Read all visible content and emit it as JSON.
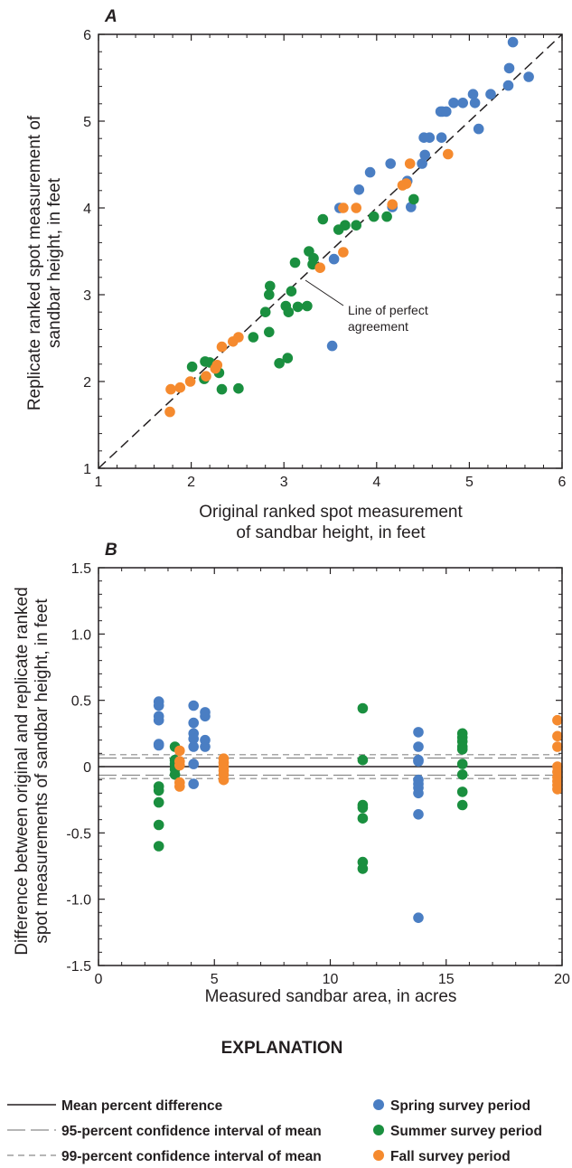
{
  "colors": {
    "spring": "#4a7ec3",
    "summer": "#1a8f3f",
    "fall": "#f58a2e",
    "axis": "#231f20",
    "ci": "#8a8a8a"
  },
  "chart_data": [
    {
      "panel": "A",
      "type": "scatter",
      "xlabel_line1": "Original ranked spot measurement",
      "xlabel_line2": "of sandbar height, in feet",
      "ylabel_line1": "Replicate ranked spot measurement of",
      "ylabel_line2": "sandbar height, in feet",
      "xlim": [
        1,
        6
      ],
      "ylim": [
        1,
        6
      ],
      "xticks": [
        "1",
        "2",
        "3",
        "4",
        "5",
        "6"
      ],
      "yticks": [
        "1",
        "2",
        "3",
        "4",
        "5",
        "6"
      ],
      "annotation_line1": "Line of perfect",
      "annotation_line2": "agreement",
      "reference_line": {
        "type": "1:1",
        "style": "dashed",
        "from": [
          1,
          1
        ],
        "to": [
          6,
          6
        ]
      },
      "series": [
        {
          "name": "Spring survey period",
          "color_key": "spring",
          "points": [
            [
              5.47,
              5.91
            ],
            [
              5.43,
              5.61
            ],
            [
              5.64,
              5.51
            ],
            [
              5.42,
              5.41
            ],
            [
              5.04,
              5.31
            ],
            [
              5.23,
              5.31
            ],
            [
              4.93,
              5.21
            ],
            [
              5.06,
              5.21
            ],
            [
              4.83,
              5.21
            ],
            [
              4.69,
              5.11
            ],
            [
              4.71,
              5.11
            ],
            [
              4.75,
              5.11
            ],
            [
              5.1,
              4.91
            ],
            [
              4.51,
              4.81
            ],
            [
              4.57,
              4.81
            ],
            [
              4.7,
              4.81
            ],
            [
              4.52,
              4.61
            ],
            [
              4.49,
              4.51
            ],
            [
              4.15,
              4.51
            ],
            [
              3.93,
              4.41
            ],
            [
              4.33,
              4.31
            ],
            [
              3.81,
              4.21
            ],
            [
              4.17,
              4.01
            ],
            [
              4.37,
              4.01
            ],
            [
              3.6,
              4.0
            ],
            [
              3.54,
              3.41
            ],
            [
              3.52,
              2.41
            ]
          ]
        },
        {
          "name": "Summer survey period",
          "color_key": "summer",
          "points": [
            [
              4.4,
              4.1
            ],
            [
              3.97,
              3.9
            ],
            [
              4.11,
              3.9
            ],
            [
              3.42,
              3.87
            ],
            [
              3.66,
              3.8
            ],
            [
              3.78,
              3.8
            ],
            [
              3.59,
              3.75
            ],
            [
              3.27,
              3.5
            ],
            [
              3.32,
              3.42
            ],
            [
              3.31,
              3.35
            ],
            [
              3.12,
              3.37
            ],
            [
              2.85,
              3.1
            ],
            [
              2.84,
              3.0
            ],
            [
              3.08,
              3.04
            ],
            [
              2.8,
              2.8
            ],
            [
              3.05,
              2.8
            ],
            [
              3.02,
              2.87
            ],
            [
              3.15,
              2.86
            ],
            [
              3.25,
              2.87
            ],
            [
              2.84,
              2.57
            ],
            [
              2.67,
              2.51
            ],
            [
              2.95,
              2.21
            ],
            [
              3.04,
              2.27
            ],
            [
              2.2,
              2.22
            ],
            [
              2.15,
              2.23
            ],
            [
              2.01,
              2.17
            ],
            [
              2.3,
              2.1
            ],
            [
              2.14,
              2.03
            ],
            [
              2.33,
              1.91
            ],
            [
              2.51,
              1.92
            ]
          ]
        },
        {
          "name": "Fall survey period",
          "color_key": "fall",
          "points": [
            [
              4.36,
              4.51
            ],
            [
              4.77,
              4.62
            ],
            [
              4.32,
              4.28
            ],
            [
              4.28,
              4.26
            ],
            [
              4.17,
              4.04
            ],
            [
              3.64,
              4.0
            ],
            [
              3.78,
              4.0
            ],
            [
              3.64,
              3.49
            ],
            [
              3.39,
              3.31
            ],
            [
              2.51,
              2.51
            ],
            [
              2.45,
              2.46
            ],
            [
              2.33,
              2.4
            ],
            [
              2.28,
              2.19
            ],
            [
              2.26,
              2.15
            ],
            [
              2.16,
              2.06
            ],
            [
              1.99,
              2.0
            ],
            [
              1.88,
              1.93
            ],
            [
              1.78,
              1.91
            ],
            [
              1.77,
              1.65
            ]
          ]
        }
      ]
    },
    {
      "panel": "B",
      "type": "scatter",
      "xlabel": "Measured sandbar area, in acres",
      "ylabel_line1": "Difference between original and replicate ranked",
      "ylabel_line2": "spot measurements of sandbar height, in feet",
      "xlim": [
        0,
        20
      ],
      "ylim": [
        -1.5,
        1.5
      ],
      "xticks": [
        "0",
        "5",
        "10",
        "15",
        "20"
      ],
      "yticks": [
        "1.5",
        "1.0",
        "0.5",
        "0",
        "-0.5",
        "-1.0",
        "-1.5"
      ],
      "mean": 0.0,
      "ci95": [
        -0.065,
        0.065
      ],
      "ci99": [
        -0.09,
        0.09
      ],
      "series": [
        {
          "name": "Spring survey period",
          "color_key": "spring",
          "points": [
            [
              2.6,
              0.49
            ],
            [
              2.6,
              0.46
            ],
            [
              2.6,
              0.38
            ],
            [
              2.6,
              0.35
            ],
            [
              2.6,
              0.17
            ],
            [
              2.6,
              0.16
            ],
            [
              4.1,
              0.46
            ],
            [
              4.1,
              0.33
            ],
            [
              4.1,
              0.25
            ],
            [
              4.1,
              0.21
            ],
            [
              4.1,
              0.15
            ],
            [
              4.1,
              0.02
            ],
            [
              4.1,
              -0.13
            ],
            [
              4.6,
              0.41
            ],
            [
              4.6,
              0.38
            ],
            [
              4.6,
              0.2
            ],
            [
              4.6,
              0.15
            ],
            [
              13.8,
              0.26
            ],
            [
              13.8,
              0.15
            ],
            [
              13.8,
              0.05
            ],
            [
              13.8,
              0.04
            ],
            [
              13.8,
              -0.1
            ],
            [
              13.8,
              -0.13
            ],
            [
              13.8,
              -0.16
            ],
            [
              13.8,
              -0.2
            ],
            [
              13.8,
              -0.36
            ],
            [
              13.8,
              -1.14
            ]
          ]
        },
        {
          "name": "Summer survey period",
          "color_key": "summer",
          "points": [
            [
              2.6,
              -0.15
            ],
            [
              2.6,
              -0.18
            ],
            [
              2.6,
              -0.27
            ],
            [
              2.6,
              -0.44
            ],
            [
              2.6,
              -0.6
            ],
            [
              3.3,
              0.15
            ],
            [
              3.3,
              0.05
            ],
            [
              3.3,
              0.02
            ],
            [
              3.3,
              -0.02
            ],
            [
              3.3,
              -0.06
            ],
            [
              11.4,
              0.44
            ],
            [
              11.4,
              0.05
            ],
            [
              11.4,
              -0.29
            ],
            [
              11.4,
              -0.31
            ],
            [
              11.4,
              -0.39
            ],
            [
              11.4,
              -0.72
            ],
            [
              11.4,
              -0.77
            ],
            [
              15.7,
              0.25
            ],
            [
              15.7,
              0.22
            ],
            [
              15.7,
              0.19
            ],
            [
              15.7,
              0.15
            ],
            [
              15.7,
              0.13
            ],
            [
              15.7,
              0.02
            ],
            [
              15.7,
              -0.06
            ],
            [
              15.7,
              -0.19
            ],
            [
              15.7,
              -0.29
            ]
          ]
        },
        {
          "name": "Fall survey period",
          "color_key": "fall",
          "points": [
            [
              3.5,
              0.12
            ],
            [
              3.5,
              0.04
            ],
            [
              3.5,
              0.01
            ],
            [
              3.5,
              -0.12
            ],
            [
              3.5,
              -0.15
            ],
            [
              5.4,
              0.06
            ],
            [
              5.4,
              0.03
            ],
            [
              5.4,
              0.0
            ],
            [
              5.4,
              -0.03
            ],
            [
              5.4,
              -0.06
            ],
            [
              5.4,
              -0.1
            ],
            [
              19.8,
              0.35
            ],
            [
              19.8,
              0.23
            ],
            [
              19.8,
              0.15
            ],
            [
              19.8,
              0.0
            ],
            [
              19.8,
              -0.04
            ],
            [
              19.8,
              -0.08
            ],
            [
              19.8,
              -0.11
            ],
            [
              19.8,
              -0.14
            ],
            [
              19.8,
              -0.17
            ]
          ]
        }
      ]
    }
  ],
  "explanation": {
    "title": "EXPLANATION",
    "lines": [
      {
        "label": "Mean percent difference",
        "style": "solid"
      },
      {
        "label": "95-percent confidence interval of mean",
        "style": "long-dash"
      },
      {
        "label": "99-percent confidence interval of mean",
        "style": "short-dash"
      }
    ],
    "markers": [
      {
        "label": "Spring survey period",
        "color_key": "spring"
      },
      {
        "label": "Summer survey period",
        "color_key": "summer"
      },
      {
        "label": "Fall survey period",
        "color_key": "fall"
      }
    ]
  }
}
